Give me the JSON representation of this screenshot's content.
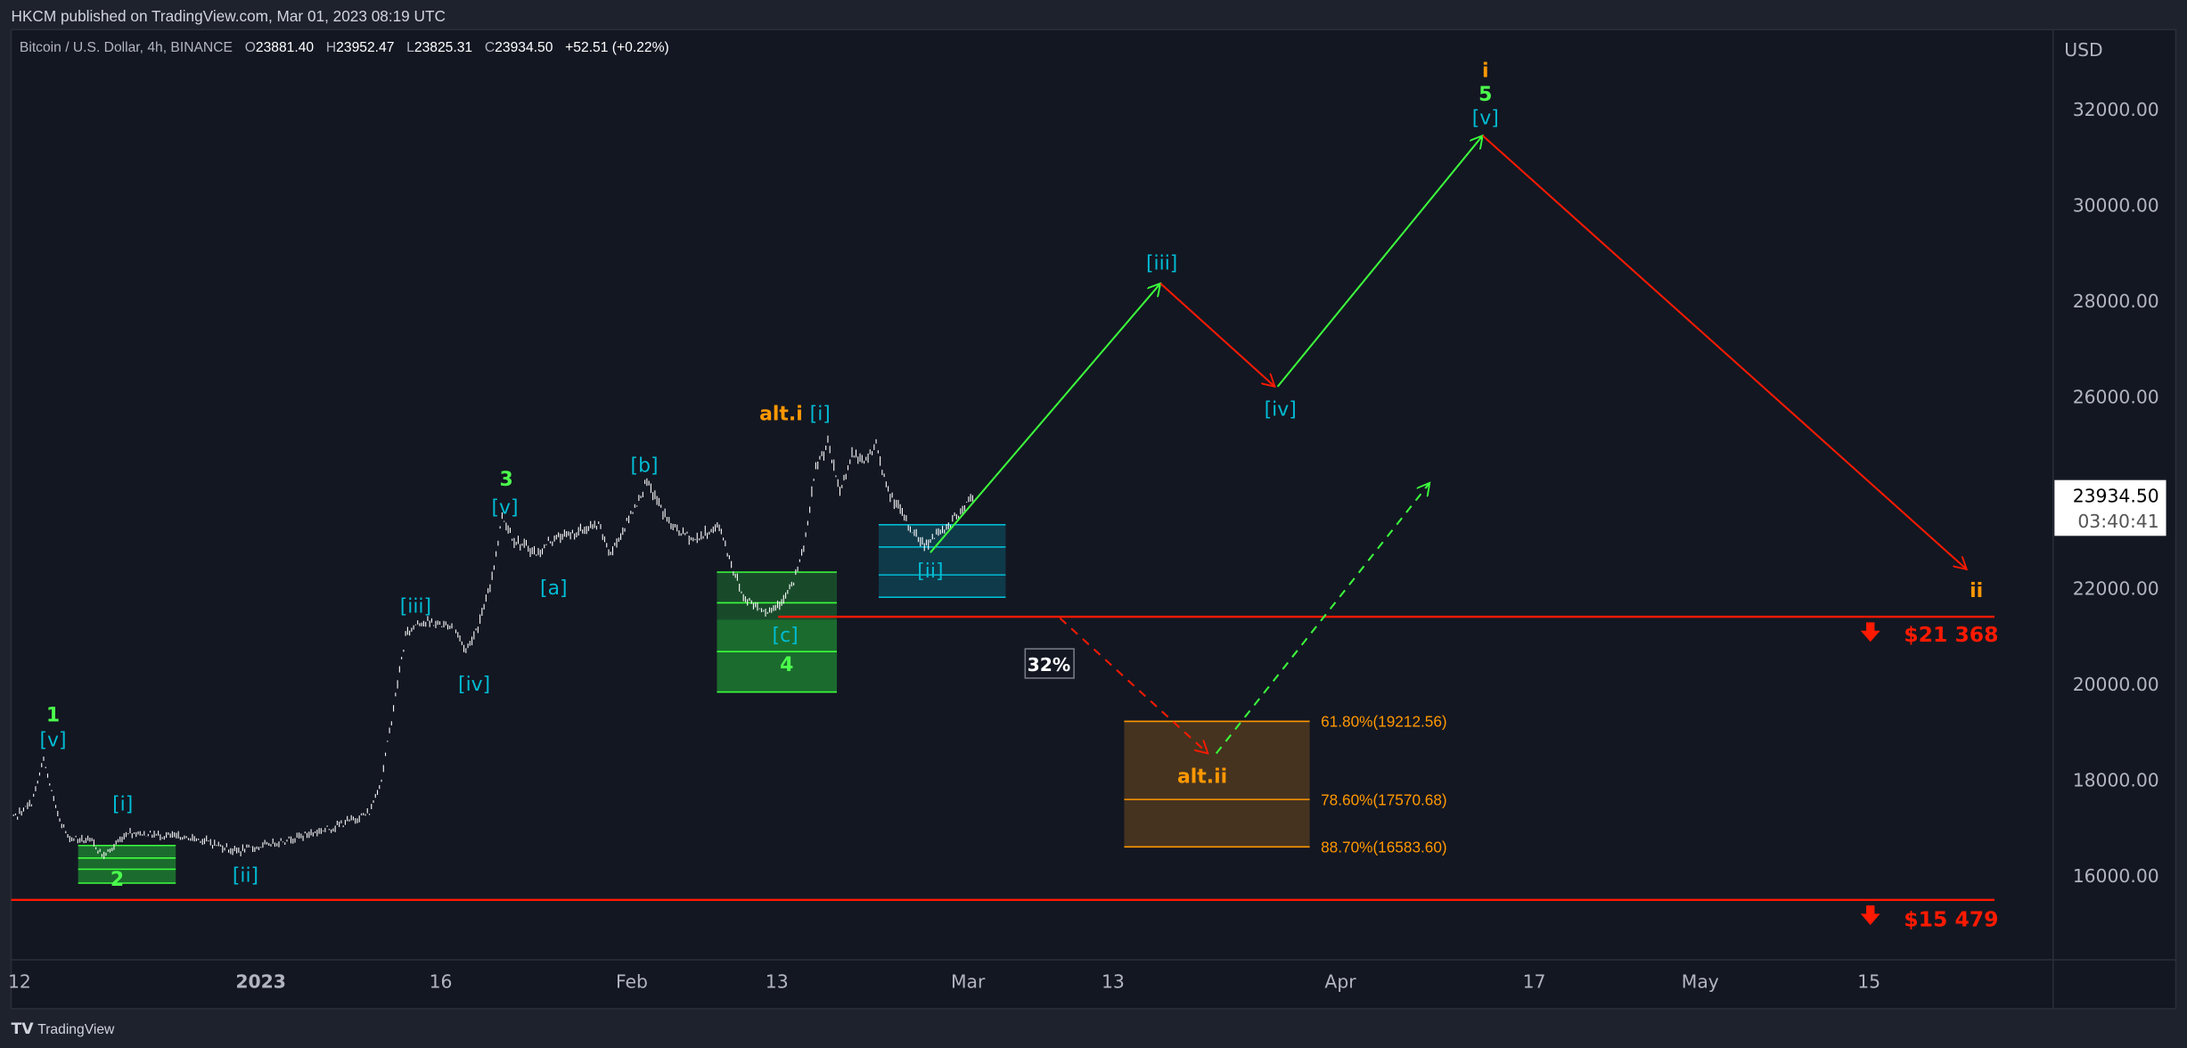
{
  "header": {
    "published": "HKCM published on TradingView.com, Mar 01, 2023 08:19 UTC"
  },
  "legend": {
    "symbol": "Bitcoin / U.S. Dollar, 4h, BINANCE",
    "o_label": "O",
    "o": "23881.40",
    "h_label": "H",
    "h": "23952.47",
    "l_label": "L",
    "l": "23825.31",
    "c_label": "C",
    "c": "23934.50",
    "change": "+52.51 (+0.22%)"
  },
  "price_axis": {
    "currency": "USD",
    "ticks": [
      "32000.00",
      "30000.00",
      "28000.00",
      "26000.00",
      "22000.00",
      "20000.00",
      "18000.00",
      "16000.00"
    ],
    "last_price": "23934.50",
    "countdown": "03:40:41"
  },
  "time_axis": {
    "ticks": [
      "12",
      "2023",
      "16",
      "Feb",
      "13",
      "Mar",
      "13",
      "Apr",
      "17",
      "May",
      "15"
    ]
  },
  "annotations": {
    "w1": "1",
    "w1v": "[v]",
    "w1i": "[i]",
    "w2": "2",
    "w2ii": "[ii]",
    "w3iii": "[iii]",
    "w3iv": "[iv]",
    "w3": "3",
    "w3v": "[v]",
    "wa": "[a]",
    "wb": "[b]",
    "wc": "[c]",
    "w4": "4",
    "alt_i": "alt.i",
    "alt_i_sub": "[i]",
    "sub_ii": "[ii]",
    "proj_iii": "[iii]",
    "proj_iv": "[iv]",
    "top_i": "i",
    "top_5": "5",
    "top_v": "[v]",
    "end_ii": "ii",
    "alt_ii": "alt.ii",
    "pct": "32%",
    "fib_618": "61.80%(19212.56)",
    "fib_786": "78.60%(17570.68)",
    "fib_887": "88.70%(16583.60)",
    "support_1": "$21 368",
    "support_2": "$15 479"
  },
  "footer": {
    "brand": "TradingView"
  },
  "colors": {
    "background": "#131722",
    "candles": "#ffffff",
    "wave_blue": "#00bcd4",
    "wave_green": "#4cff4c",
    "wave_orange": "#ff9800",
    "support_red": "#ff1a00"
  },
  "chart_data": {
    "type": "ohlc",
    "title": "Bitcoin / U.S. Dollar, 4h, BINANCE",
    "ylim": [
      14000,
      34000
    ],
    "y_ticks": [
      16000,
      18000,
      20000,
      22000,
      26000,
      28000,
      30000,
      32000
    ],
    "grid": false,
    "price_path": [
      [
        "2022-12-11",
        17100
      ],
      [
        "2022-12-13",
        17500
      ],
      [
        "2022-12-14",
        18400
      ],
      [
        "2022-12-15",
        17400
      ],
      [
        "2022-12-16",
        16800
      ],
      [
        "2022-12-18",
        16700
      ],
      [
        "2022-12-19",
        16400
      ],
      [
        "2022-12-21",
        16900
      ],
      [
        "2022-12-27",
        16750
      ],
      [
        "2022-12-30",
        16500
      ],
      [
        "2023-01-01",
        16600
      ],
      [
        "2023-01-07",
        17000
      ],
      [
        "2023-01-10",
        17300
      ],
      [
        "2023-01-11",
        18000
      ],
      [
        "2023-01-12",
        19500
      ],
      [
        "2023-01-13",
        21000
      ],
      [
        "2023-01-14",
        21300
      ],
      [
        "2023-01-17",
        21200
      ],
      [
        "2023-01-18",
        20700
      ],
      [
        "2023-01-19",
        21200
      ],
      [
        "2023-01-20",
        22000
      ],
      [
        "2023-01-21",
        23500
      ],
      [
        "2023-01-22",
        23000
      ],
      [
        "2023-01-24",
        22700
      ],
      [
        "2023-01-25",
        23000
      ],
      [
        "2023-01-29",
        23300
      ],
      [
        "2023-01-30",
        22700
      ],
      [
        "2023-02-02",
        24200
      ],
      [
        "2023-02-04",
        23300
      ],
      [
        "2023-02-06",
        23000
      ],
      [
        "2023-02-08",
        23300
      ],
      [
        "2023-02-09",
        22500
      ],
      [
        "2023-02-10",
        21800
      ],
      [
        "2023-02-12",
        21500
      ],
      [
        "2023-02-13",
        21700
      ],
      [
        "2023-02-14",
        22000
      ],
      [
        "2023-02-15",
        22800
      ],
      [
        "2023-02-16",
        24500
      ],
      [
        "2023-02-17",
        25000
      ],
      [
        "2023-02-18",
        24000
      ],
      [
        "2023-02-19",
        24800
      ],
      [
        "2023-02-20",
        24600
      ],
      [
        "2023-02-21",
        25000
      ],
      [
        "2023-02-22",
        24000
      ],
      [
        "2023-02-24",
        23200
      ],
      [
        "2023-02-25",
        22900
      ],
      [
        "2023-02-27",
        23300
      ],
      [
        "2023-03-01",
        23934.5
      ]
    ],
    "support_levels": [
      21368,
      15479
    ],
    "fib_levels": [
      {
        "ratio": 0.618,
        "price": 19212.56
      },
      {
        "ratio": 0.786,
        "price": 17570.68
      },
      {
        "ratio": 0.887,
        "price": 16583.6
      }
    ],
    "projection_main": [
      [
        "2023-03-01",
        22700
      ],
      [
        "2023-03-16",
        28400
      ],
      [
        "2023-03-26",
        26200
      ],
      [
        "2023-04-12",
        31400
      ],
      [
        "2023-05-24",
        22200
      ]
    ],
    "projection_alt": [
      [
        "2023-03-08",
        21400
      ],
      [
        "2023-03-20",
        18500
      ],
      [
        "2023-04-08",
        24200
      ]
    ]
  }
}
